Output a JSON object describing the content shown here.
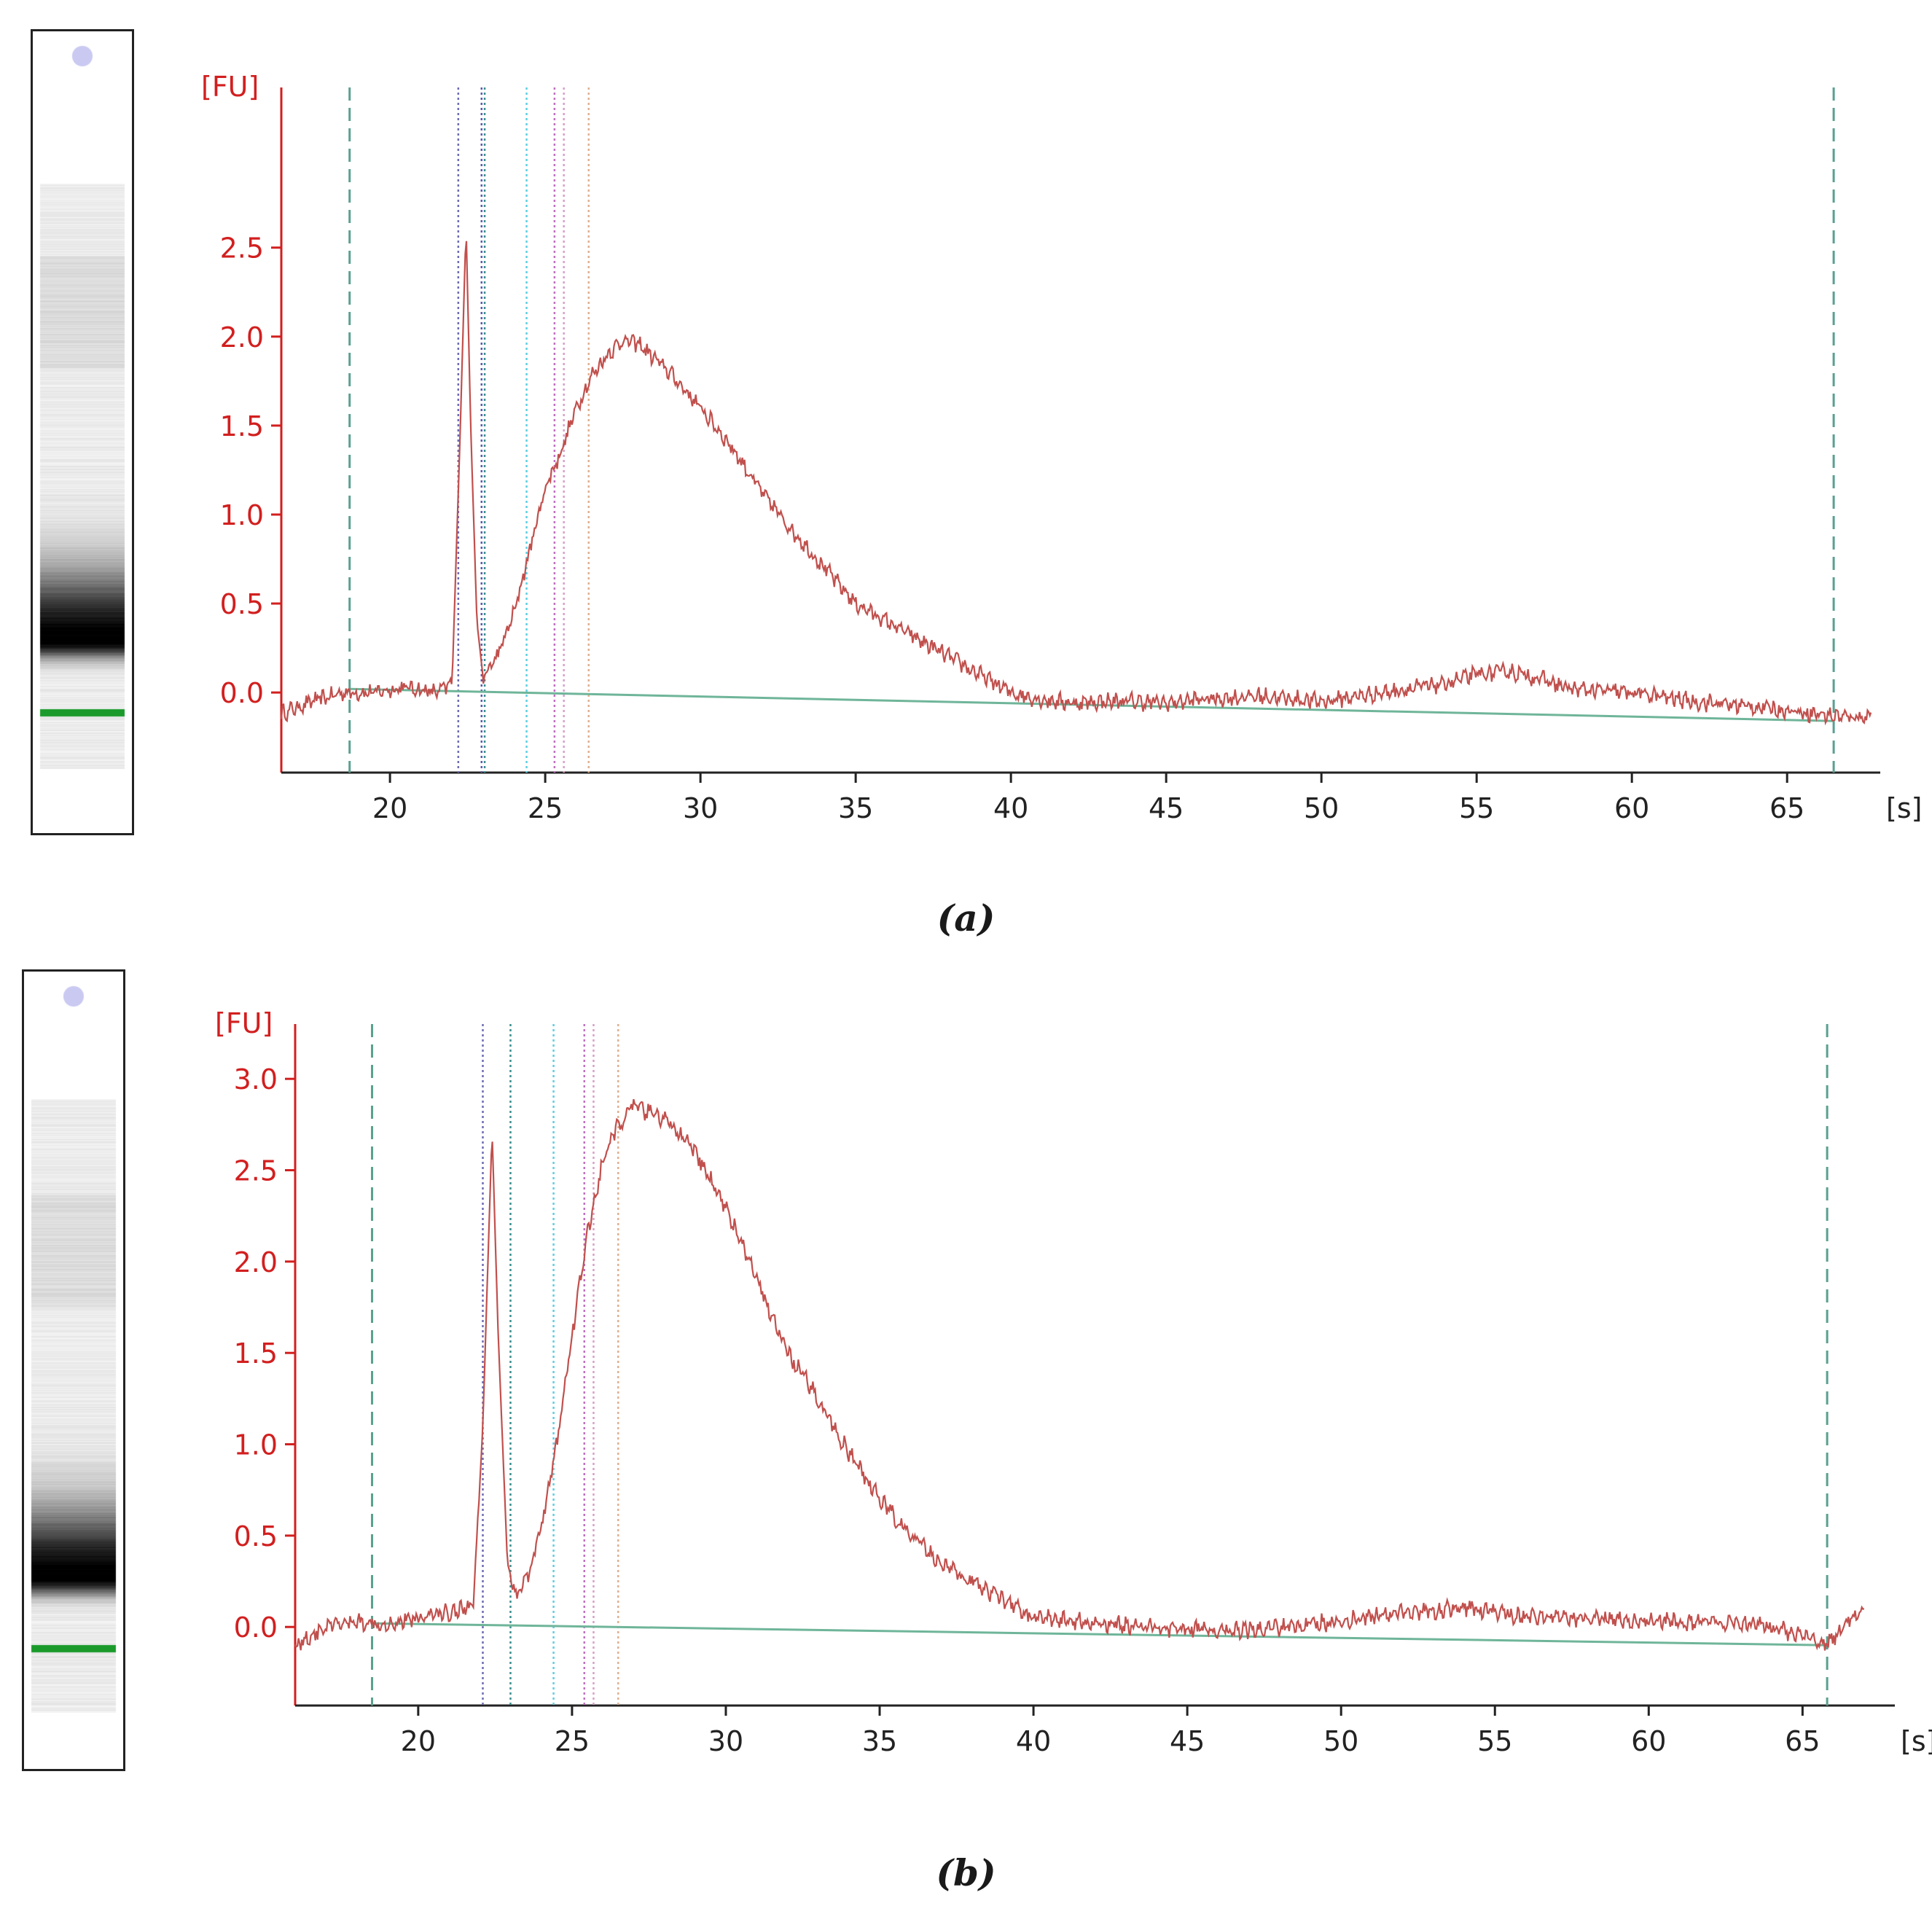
{
  "colors": {
    "axis_y": "#d21f1f",
    "axis_x": "#222222",
    "trace": "#c0504d",
    "baseline": "#6fb59a",
    "window_marker": "#5aa08f",
    "ladder_marker": "#1a9a2a",
    "upper_marker": "#c9c9f2"
  },
  "panels": [
    {
      "id": "a",
      "caption": "(a)",
      "chart_data": {
        "type": "line",
        "y_unit_label": "[FU]",
        "x_unit_label": "[s]",
        "xlim": [
          16.5,
          68.0
        ],
        "ylim": [
          -0.45,
          3.4
        ],
        "y_ticks": [
          0.0,
          0.5,
          1.0,
          1.5,
          2.0,
          2.5
        ],
        "y_tick_labels": [
          "0.0",
          "0.5",
          "1.0",
          "1.5",
          "2.0",
          "2.5"
        ],
        "x_ticks": [
          20,
          25,
          30,
          35,
          40,
          45,
          50,
          55,
          60,
          65
        ],
        "x_tick_labels": [
          "20",
          "25",
          "30",
          "35",
          "40",
          "45",
          "50",
          "55",
          "60",
          "65"
        ],
        "window_markers_s": [
          18.7,
          66.5
        ],
        "region_markers": [
          {
            "x": 22.2,
            "color": "#6d6db5"
          },
          {
            "x": 22.95,
            "color": "#5a5ab0"
          },
          {
            "x": 23.05,
            "color": "#3b8f8f"
          },
          {
            "x": 24.4,
            "color": "#5ecfe0"
          },
          {
            "x": 25.3,
            "color": "#c070c0"
          },
          {
            "x": 25.6,
            "color": "#d8a0c8"
          },
          {
            "x": 26.4,
            "color": "#e0b090"
          }
        ],
        "baseline": {
          "x": [
            18.7,
            66.5
          ],
          "y": [
            0.02,
            -0.16
          ]
        },
        "series": [
          {
            "x": [
              16.5,
              17.5,
              18.5,
              19.5,
              20.5,
              21.5,
              22.0,
              22.25,
              22.45,
              22.6,
              22.8,
              23.0,
              23.5,
              24.0,
              24.5,
              25.0,
              25.5,
              26.0,
              26.5,
              27.0,
              27.5,
              28.0,
              29.0,
              30.0,
              31.0,
              32.0,
              33.0,
              34.0,
              35.0,
              36.0,
              37.0,
              38.0,
              39.0,
              40.0,
              41.0,
              42.0,
              43.0,
              44.0,
              45.0,
              46.0,
              48.0,
              50.0,
              52.0,
              54.0,
              55.0,
              56.0,
              57.0,
              58.0,
              60.0,
              62.0,
              64.0,
              65.0,
              66.0,
              67.0,
              67.7
            ],
            "y": [
              -0.12,
              -0.05,
              0.0,
              0.0,
              0.03,
              0.0,
              0.05,
              1.4,
              2.62,
              1.5,
              0.4,
              0.08,
              0.22,
              0.45,
              0.8,
              1.15,
              1.35,
              1.6,
              1.78,
              1.9,
              1.98,
              1.96,
              1.8,
              1.6,
              1.38,
              1.12,
              0.9,
              0.7,
              0.5,
              0.4,
              0.3,
              0.2,
              0.1,
              0.0,
              -0.04,
              -0.06,
              -0.05,
              -0.05,
              -0.06,
              -0.04,
              -0.02,
              -0.05,
              0.0,
              0.05,
              0.1,
              0.12,
              0.08,
              0.02,
              0.0,
              -0.05,
              -0.08,
              -0.1,
              -0.12,
              -0.14,
              -0.13
            ]
          }
        ]
      }
    },
    {
      "id": "b",
      "caption": "(b)",
      "chart_data": {
        "type": "line",
        "y_unit_label": "[FU]",
        "x_unit_label": "[s]",
        "xlim": [
          16.0,
          68.0
        ],
        "ylim": [
          -0.43,
          3.3
        ],
        "y_ticks": [
          0.0,
          0.5,
          1.0,
          1.5,
          2.0,
          2.5,
          3.0
        ],
        "y_tick_labels": [
          "0.0",
          "0.5",
          "1.0",
          "1.5",
          "2.0",
          "2.5",
          "3.0"
        ],
        "x_ticks": [
          20,
          25,
          30,
          35,
          40,
          45,
          50,
          55,
          60,
          65
        ],
        "x_tick_labels": [
          "20",
          "25",
          "30",
          "35",
          "40",
          "45",
          "50",
          "55",
          "60",
          "65"
        ],
        "window_markers_s": [
          18.5,
          65.8
        ],
        "region_markers": [
          {
            "x": 22.1,
            "color": "#6d6db5"
          },
          {
            "x": 23.0,
            "color": "#3b8f8f"
          },
          {
            "x": 24.4,
            "color": "#5ecfe0"
          },
          {
            "x": 25.4,
            "color": "#c070c0"
          },
          {
            "x": 25.7,
            "color": "#d8a0c8"
          },
          {
            "x": 26.5,
            "color": "#e0b090"
          }
        ],
        "baseline": {
          "x": [
            18.5,
            65.8
          ],
          "y": [
            0.02,
            -0.1
          ]
        },
        "series": [
          {
            "x": [
              16.0,
              17.0,
              18.0,
              19.0,
              20.0,
              21.0,
              21.8,
              22.1,
              22.4,
              22.6,
              22.9,
              23.2,
              23.6,
              24.0,
              24.5,
              25.0,
              25.5,
              26.0,
              26.5,
              27.0,
              28.0,
              29.0,
              30.0,
              31.0,
              32.0,
              33.0,
              34.0,
              35.0,
              36.0,
              37.0,
              38.0,
              39.0,
              40.0,
              42.0,
              44.0,
              46.0,
              48.0,
              50.0,
              52.0,
              54.0,
              56.0,
              58.0,
              60.0,
              62.0,
              64.0,
              65.0,
              65.8,
              66.5,
              67.0
            ],
            "y": [
              -0.1,
              0.0,
              0.03,
              0.02,
              0.05,
              0.08,
              0.12,
              1.1,
              2.72,
              1.6,
              0.35,
              0.16,
              0.3,
              0.55,
              1.0,
              1.6,
              2.15,
              2.55,
              2.75,
              2.85,
              2.78,
              2.6,
              2.3,
              1.9,
              1.5,
              1.25,
              0.95,
              0.7,
              0.5,
              0.35,
              0.25,
              0.15,
              0.05,
              0.02,
              0.0,
              -0.02,
              0.0,
              0.03,
              0.08,
              0.1,
              0.06,
              0.05,
              0.03,
              0.02,
              0.0,
              -0.05,
              -0.1,
              0.05,
              0.1
            ]
          }
        ]
      }
    }
  ]
}
